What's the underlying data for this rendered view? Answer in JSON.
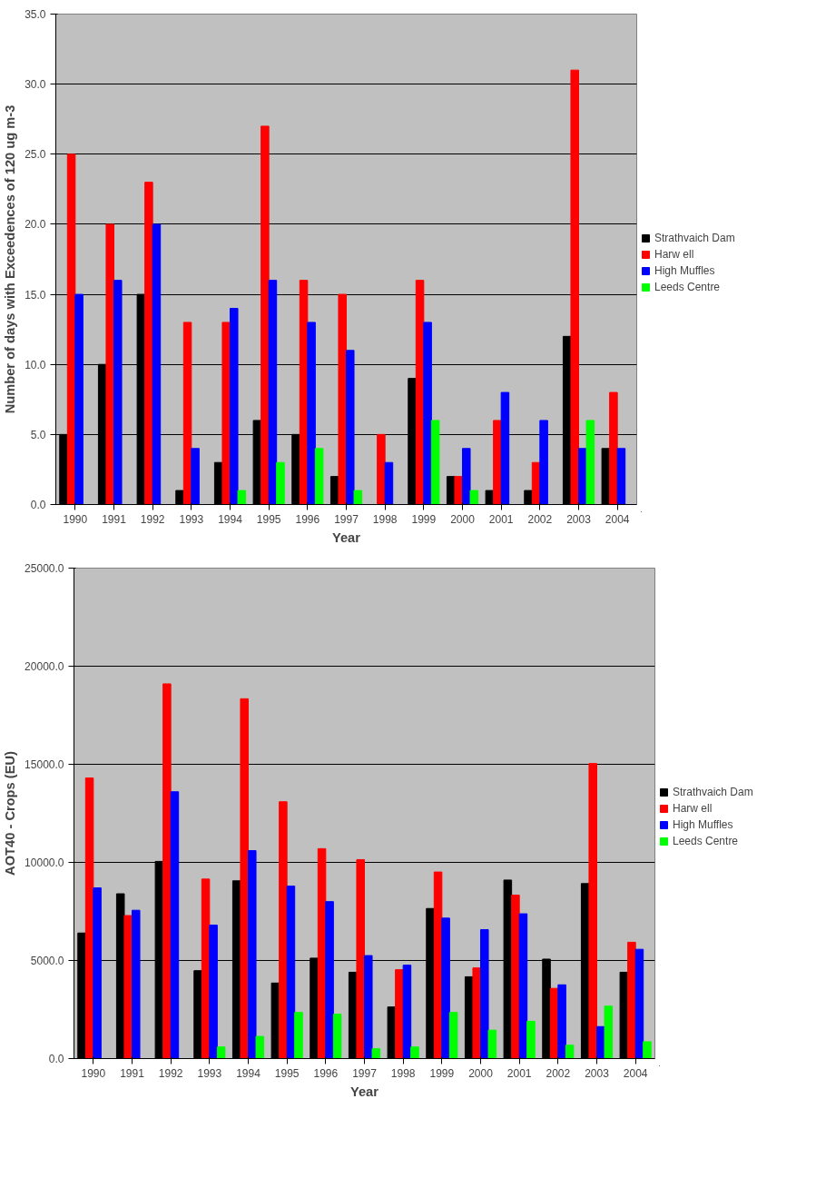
{
  "chart_data": [
    {
      "type": "bar",
      "xlabel": "Year",
      "ylabel": "Number of days with Exceedences of 120 ug m-3",
      "categories": [
        "1990",
        "1991",
        "1992",
        "1993",
        "1994",
        "1995",
        "1996",
        "1997",
        "1998",
        "1999",
        "2000",
        "2001",
        "2002",
        "2003",
        "2004"
      ],
      "series": [
        {
          "name": "Strathvaich Dam",
          "color": "#000000",
          "values": [
            5,
            10,
            15,
            1,
            3,
            6,
            5,
            2,
            0,
            9,
            2,
            1,
            1,
            12,
            4
          ]
        },
        {
          "name": "Harw ell",
          "color": "#ff0000",
          "values": [
            25,
            20,
            23,
            13,
            13,
            27,
            16,
            15,
            5,
            16,
            2,
            6,
            3,
            31,
            8
          ]
        },
        {
          "name": "High Muffles",
          "color": "#0000ff",
          "values": [
            15,
            16,
            20,
            4,
            14,
            16,
            13,
            11,
            3,
            13,
            4,
            8,
            6,
            4,
            4
          ]
        },
        {
          "name": "Leeds Centre",
          "color": "#00ff00",
          "values": [
            0,
            0,
            0,
            0,
            1,
            3,
            4,
            1,
            0,
            6,
            1,
            0,
            0,
            6,
            0
          ]
        }
      ],
      "ylim": [
        0,
        35
      ],
      "yticks": [
        {
          "value": 0,
          "label": "0.0"
        },
        {
          "value": 5,
          "label": "5.0"
        },
        {
          "value": 10,
          "label": "10.0"
        },
        {
          "value": 15,
          "label": "15.0"
        },
        {
          "value": 20,
          "label": "20.0"
        },
        {
          "value": 25,
          "label": "25.0"
        },
        {
          "value": 30,
          "label": "30.0"
        },
        {
          "value": 35,
          "label": "35.0"
        }
      ],
      "grid": "y",
      "legend": "right"
    },
    {
      "type": "bar",
      "xlabel": "Year",
      "ylabel": "AOT40 - Crops (EU)",
      "categories": [
        "1990",
        "1991",
        "1992",
        "1993",
        "1994",
        "1995",
        "1996",
        "1997",
        "1998",
        "1999",
        "2000",
        "2001",
        "2002",
        "2003",
        "2004"
      ],
      "series": [
        {
          "name": "Strathvaich Dam",
          "color": "#000000",
          "values": [
            6400,
            8400,
            10050,
            4480,
            9060,
            3850,
            5120,
            4400,
            2630,
            7650,
            4170,
            9100,
            5070,
            8920,
            4400
          ]
        },
        {
          "name": "Harw ell",
          "color": "#ff0000",
          "values": [
            14300,
            7290,
            19100,
            9150,
            18340,
            13090,
            10700,
            10140,
            4530,
            9510,
            4620,
            8330,
            3580,
            15040,
            5930
          ]
        },
        {
          "name": "High Muffles",
          "color": "#0000ff",
          "values": [
            8700,
            7560,
            13600,
            6800,
            10600,
            8790,
            8000,
            5250,
            4760,
            7160,
            6570,
            7380,
            3760,
            1630,
            5570
          ]
        },
        {
          "name": "Leeds Centre",
          "color": "#00ff00",
          "values": [
            0,
            0,
            0,
            590,
            1130,
            2350,
            2260,
            500,
            590,
            2350,
            1450,
            1900,
            680,
            2670,
            860
          ]
        }
      ],
      "ylim": [
        0,
        25000
      ],
      "yticks": [
        {
          "value": 0,
          "label": "0.0"
        },
        {
          "value": 5000,
          "label": "5000.0"
        },
        {
          "value": 10000,
          "label": "10000.0"
        },
        {
          "value": 15000,
          "label": "15000.0"
        },
        {
          "value": 20000,
          "label": "20000.0"
        },
        {
          "value": 25000,
          "label": "25000.0"
        }
      ],
      "grid": "y",
      "legend": "right"
    }
  ]
}
